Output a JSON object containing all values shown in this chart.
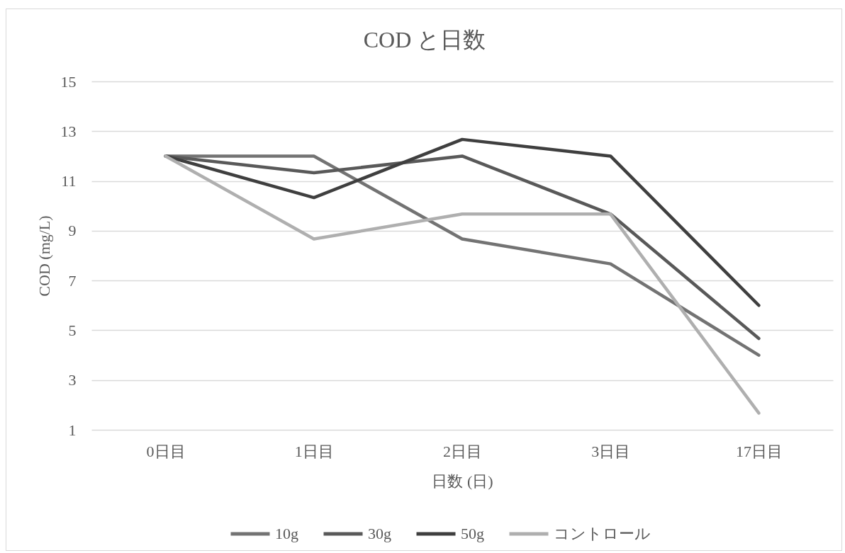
{
  "chart_data": {
    "type": "line",
    "title": "COD と日数",
    "xlabel": "日数 (日)",
    "ylabel": "COD (mg/L)",
    "categories": [
      "0日目",
      "1日目",
      "2日目",
      "3日目",
      "17日目"
    ],
    "series": [
      {
        "name": "10g",
        "color": "#737373",
        "values": [
          12,
          12,
          8.67,
          7.67,
          4
        ]
      },
      {
        "name": "30g",
        "color": "#595959",
        "values": [
          12,
          11.33,
          12,
          9.67,
          4.67
        ]
      },
      {
        "name": "50g",
        "color": "#3f3f3f",
        "values": [
          12,
          10.33,
          12.67,
          12,
          6
        ]
      },
      {
        "name": "コントロール",
        "color": "#afafaf",
        "values": [
          12,
          8.67,
          9.67,
          9.67,
          1.67
        ]
      }
    ],
    "ylim": [
      1,
      15
    ],
    "yticks": [
      1,
      3,
      5,
      7,
      9,
      11,
      13,
      15
    ],
    "grid": "y",
    "legend": "bottom"
  }
}
